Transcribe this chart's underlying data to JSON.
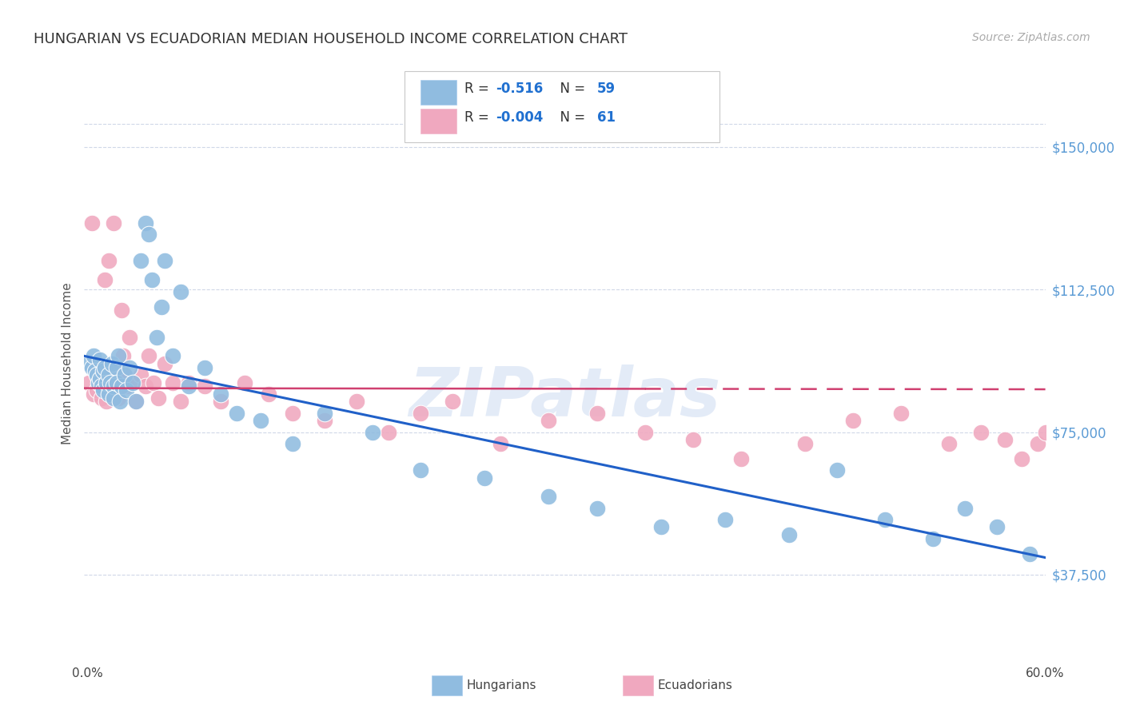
{
  "title": "HUNGARIAN VS ECUADORIAN MEDIAN HOUSEHOLD INCOME CORRELATION CHART",
  "source": "Source: ZipAtlas.com",
  "ylabel": "Median Household Income",
  "yticks": [
    37500,
    75000,
    112500,
    150000
  ],
  "ytick_labels": [
    "$37,500",
    "$75,000",
    "$112,500",
    "$150,000"
  ],
  "xlim_min": 0.0,
  "xlim_max": 0.6,
  "ylim_min": 18000,
  "ylim_max": 168000,
  "hun_color": "#90bce0",
  "ecu_color": "#f0a8bf",
  "hun_line_color": "#2060c8",
  "ecu_line_color": "#d04070",
  "watermark_color": "#c8d8f0",
  "hun_R": -0.516,
  "ecu_R": -0.004,
  "hun_N": 59,
  "ecu_N": 61,
  "hun_x": [
    0.003,
    0.005,
    0.006,
    0.007,
    0.008,
    0.009,
    0.01,
    0.01,
    0.011,
    0.012,
    0.012,
    0.013,
    0.014,
    0.015,
    0.015,
    0.016,
    0.017,
    0.018,
    0.018,
    0.02,
    0.02,
    0.021,
    0.022,
    0.023,
    0.025,
    0.026,
    0.028,
    0.03,
    0.032,
    0.035,
    0.038,
    0.04,
    0.042,
    0.045,
    0.048,
    0.05,
    0.055,
    0.06,
    0.065,
    0.075,
    0.085,
    0.095,
    0.11,
    0.13,
    0.15,
    0.18,
    0.21,
    0.25,
    0.29,
    0.32,
    0.36,
    0.4,
    0.44,
    0.47,
    0.5,
    0.53,
    0.55,
    0.57,
    0.59
  ],
  "hun_y": [
    93000,
    92000,
    95000,
    91000,
    90000,
    88000,
    94000,
    89000,
    87000,
    91000,
    86000,
    92000,
    88000,
    90000,
    85000,
    88000,
    93000,
    87000,
    84000,
    92000,
    88000,
    95000,
    83000,
    87000,
    90000,
    86000,
    92000,
    88000,
    83000,
    120000,
    130000,
    127000,
    115000,
    100000,
    108000,
    120000,
    95000,
    112000,
    87000,
    92000,
    85000,
    80000,
    78000,
    72000,
    80000,
    75000,
    65000,
    63000,
    58000,
    55000,
    50000,
    52000,
    48000,
    65000,
    52000,
    47000,
    55000,
    50000,
    43000
  ],
  "ecu_x": [
    0.003,
    0.005,
    0.006,
    0.007,
    0.008,
    0.009,
    0.01,
    0.011,
    0.012,
    0.013,
    0.013,
    0.014,
    0.015,
    0.016,
    0.017,
    0.018,
    0.019,
    0.02,
    0.021,
    0.022,
    0.023,
    0.024,
    0.025,
    0.026,
    0.028,
    0.03,
    0.032,
    0.035,
    0.038,
    0.04,
    0.043,
    0.046,
    0.05,
    0.055,
    0.06,
    0.065,
    0.075,
    0.085,
    0.1,
    0.115,
    0.13,
    0.15,
    0.17,
    0.19,
    0.21,
    0.23,
    0.26,
    0.29,
    0.32,
    0.35,
    0.38,
    0.41,
    0.45,
    0.48,
    0.51,
    0.54,
    0.56,
    0.575,
    0.585,
    0.595,
    0.6
  ],
  "ecu_y": [
    88000,
    130000,
    85000,
    93000,
    86000,
    89000,
    91000,
    84000,
    88000,
    87000,
    115000,
    83000,
    120000,
    90000,
    88000,
    130000,
    86000,
    91000,
    84000,
    88000,
    107000,
    95000,
    90000,
    87000,
    100000,
    88000,
    83000,
    90000,
    87000,
    95000,
    88000,
    84000,
    93000,
    88000,
    83000,
    88000,
    87000,
    83000,
    88000,
    85000,
    80000,
    78000,
    83000,
    75000,
    80000,
    83000,
    72000,
    78000,
    80000,
    75000,
    73000,
    68000,
    72000,
    78000,
    80000,
    72000,
    75000,
    73000,
    68000,
    72000,
    75000
  ]
}
